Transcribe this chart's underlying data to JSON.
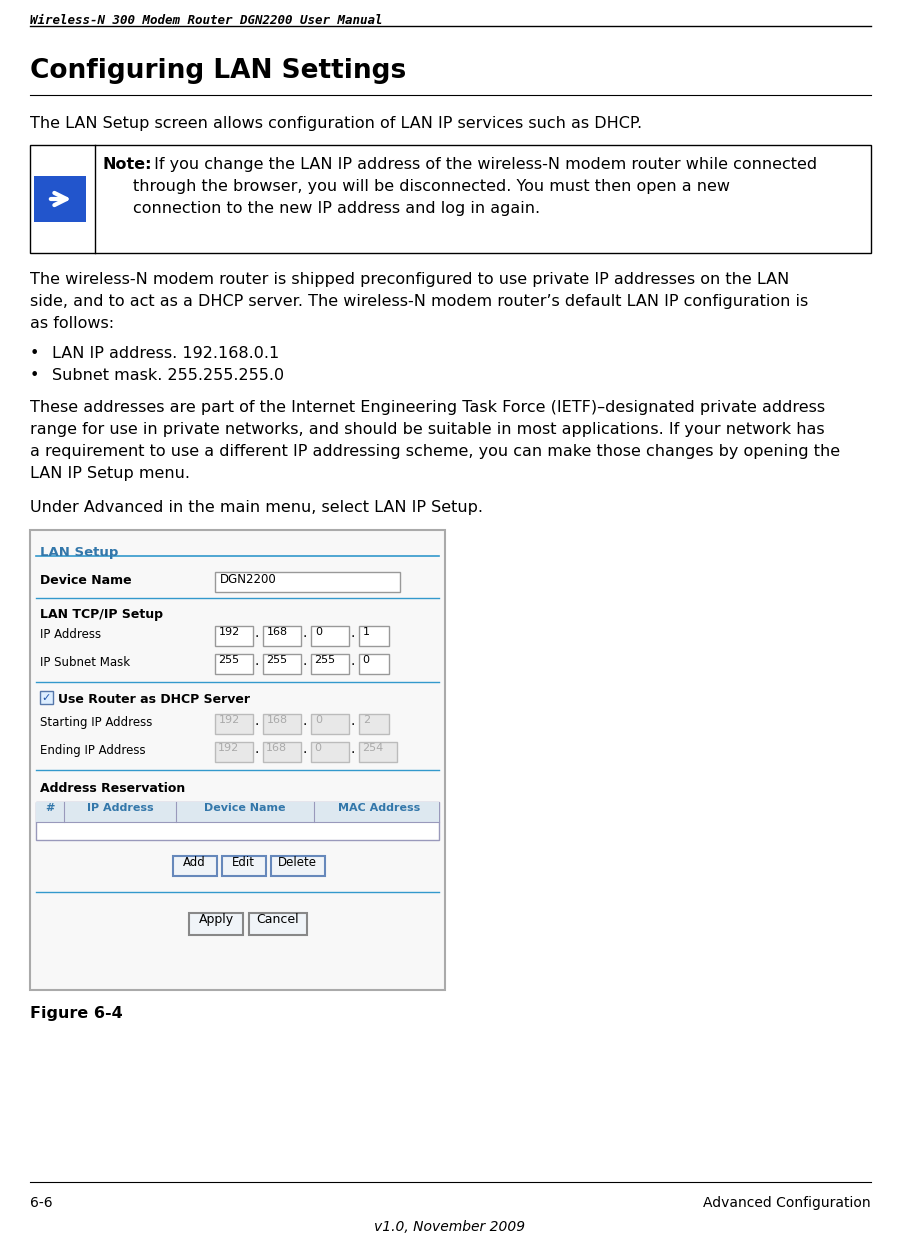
{
  "page_title": "Wireless-N 300 Modem Router DGN2200 User Manual",
  "section_title": "Configuring LAN Settings",
  "footer_left": "6-6",
  "footer_right": "Advanced Configuration",
  "footer_center": "v1.0, November 2009",
  "intro_text": "The LAN Setup screen allows configuration of LAN IP services such as DHCP.",
  "note_bold": "Note:",
  "note_line1": " If you change the LAN IP address of the wireless-N modem router while connected",
  "note_line2": "through the browser, you will be disconnected. You must then open a new",
  "note_line3": "connection to the new IP address and log in again.",
  "body_text1_lines": [
    "The wireless-N modem router is shipped preconfigured to use private IP addresses on the LAN",
    "side, and to act as a DHCP server. The wireless-N modem router’s default LAN IP configuration is",
    "as follows:"
  ],
  "bullet1": "LAN IP address. 192.168.0.1",
  "bullet2": "Subnet mask. 255.255.255.0",
  "body_text2_lines": [
    "These addresses are part of the Internet Engineering Task Force (IETF)–designated private address",
    "range for use in private networks, and should be suitable in most applications. If your network has",
    "a requirement to use a different IP addressing scheme, you can make those changes by opening the",
    "LAN IP Setup menu."
  ],
  "body_text3": "Under Advanced in the main menu, select LAN IP Setup.",
  "figure_caption": "Figure 6-4",
  "bg_color": "#ffffff",
  "text_color": "#000000",
  "line_color": "#000000",
  "note_border": "#000000",
  "note_arrow_bg": "#2255cc",
  "ui_blue": "#3399cc",
  "ui_border": "#6699cc",
  "ui_header_text": "#3377aa",
  "ui_bold_text": "#000000",
  "ui_bg": "#ffffff",
  "ui_disabled_bg": "#e8e8e8",
  "ui_disabled_text": "#999999",
  "ui_table_header_text": "#3377aa",
  "ui_btn_border": "#6688bb"
}
